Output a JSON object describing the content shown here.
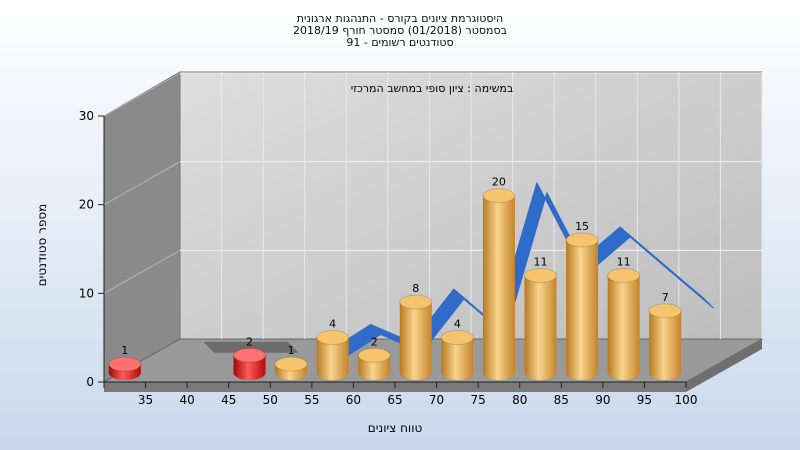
{
  "chart_data": {
    "type": "bar",
    "title_lines": [
      "היסטוגרמת ציונים בקורס - התנהגות ארגונית",
      "בסמסטר  (01/2018)  סמסטר חורף  2018/19",
      "סטודנטים רשומים - 91"
    ],
    "annotation": "במשימה : ציון סופי במחשב המרכזי",
    "xlabel": "טווח ציונים",
    "ylabel": "מספר סטודנטים",
    "ylim": [
      0,
      30
    ],
    "yticks": [
      "0",
      "10",
      "20",
      "30"
    ],
    "categories": [
      "35",
      "40",
      "45",
      "50",
      "55",
      "60",
      "65",
      "70",
      "75",
      "80",
      "85",
      "90",
      "95",
      "100"
    ],
    "bars": [
      {
        "x": "35",
        "value": 1,
        "color": "red"
      },
      {
        "x": "50",
        "value": 2,
        "color": "red"
      },
      {
        "x": "55",
        "value": 1,
        "color": "gold"
      },
      {
        "x": "60",
        "value": 4,
        "color": "gold"
      },
      {
        "x": "65",
        "value": 2,
        "color": "gold"
      },
      {
        "x": "70",
        "value": 8,
        "color": "gold"
      },
      {
        "x": "75",
        "value": 4,
        "color": "gold"
      },
      {
        "x": "80",
        "value": 20,
        "color": "gold"
      },
      {
        "x": "85",
        "value": 11,
        "color": "gold"
      },
      {
        "x": "90",
        "value": 15,
        "color": "gold"
      },
      {
        "x": "95",
        "value": 11,
        "color": "gold"
      },
      {
        "x": "100",
        "value": 7,
        "color": "gold"
      }
    ],
    "ribbon": {
      "gray_x": [
        "40",
        "45",
        "50"
      ],
      "blue_x": [
        "55",
        "60",
        "65",
        "70",
        "75",
        "80",
        "85",
        "90",
        "95",
        "100"
      ],
      "values": [
        1,
        2,
        2,
        2,
        1,
        4,
        2,
        8,
        4,
        20,
        11,
        15,
        11,
        7
      ]
    },
    "colors": {
      "bar_gold": "#e8a94a",
      "bar_red": "#e01818",
      "ribbon_blue": "#2f6bc8",
      "ribbon_gray": "#6d6d6d",
      "back_wall": "#c8c8c8",
      "side_wall": "#8a8a8a",
      "floor": "#9a9a9a"
    }
  }
}
